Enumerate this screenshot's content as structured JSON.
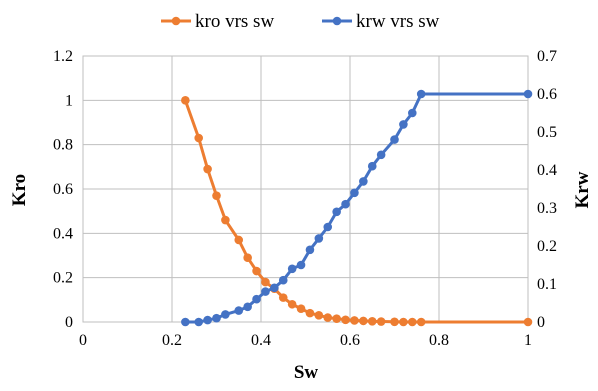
{
  "chart_data": {
    "type": "line",
    "title": "",
    "xlabel": "Sw",
    "ylabel_left": "Kro",
    "ylabel_right": "Krw",
    "xlim": [
      0,
      1
    ],
    "ylim_left": [
      0,
      1.2
    ],
    "ylim_right": [
      0,
      0.7
    ],
    "x_ticks": [
      "0",
      "0.2",
      "0.4",
      "0.6",
      "0.8",
      "1"
    ],
    "y_left_ticks": [
      "0",
      "0.2",
      "0.4",
      "0.6",
      "0.8",
      "1",
      "1.2"
    ],
    "y_right_ticks": [
      "0",
      "0.1",
      "0.2",
      "0.3",
      "0.4",
      "0.5",
      "0.6",
      "0.7"
    ],
    "grid": true,
    "legend_position": "top",
    "series": [
      {
        "name": "kro vrs sw",
        "axis": "left",
        "color": "#ED7D31",
        "x": [
          0.23,
          0.26,
          0.28,
          0.3,
          0.32,
          0.35,
          0.37,
          0.39,
          0.41,
          0.43,
          0.45,
          0.47,
          0.49,
          0.51,
          0.53,
          0.55,
          0.57,
          0.59,
          0.61,
          0.63,
          0.65,
          0.67,
          0.7,
          0.72,
          0.74,
          0.76,
          1.0
        ],
        "y": [
          1.0,
          0.83,
          0.69,
          0.57,
          0.46,
          0.37,
          0.29,
          0.23,
          0.18,
          0.15,
          0.11,
          0.08,
          0.06,
          0.04,
          0.03,
          0.02,
          0.015,
          0.01,
          0.007,
          0.005,
          0.003,
          0.002,
          0.001,
          0.0,
          0.0,
          0.0,
          0.0
        ]
      },
      {
        "name": "krw vrs sw",
        "axis": "right",
        "color": "#4472C4",
        "x": [
          0.23,
          0.26,
          0.28,
          0.3,
          0.32,
          0.35,
          0.37,
          0.39,
          0.41,
          0.43,
          0.45,
          0.47,
          0.49,
          0.51,
          0.53,
          0.55,
          0.57,
          0.59,
          0.61,
          0.63,
          0.65,
          0.67,
          0.7,
          0.72,
          0.74,
          0.76,
          1.0
        ],
        "y": [
          0.0,
          0.0,
          0.005,
          0.01,
          0.02,
          0.03,
          0.04,
          0.06,
          0.08,
          0.09,
          0.11,
          0.14,
          0.15,
          0.19,
          0.22,
          0.25,
          0.29,
          0.31,
          0.34,
          0.37,
          0.41,
          0.44,
          0.48,
          0.52,
          0.55,
          0.6,
          0.6
        ]
      }
    ]
  }
}
